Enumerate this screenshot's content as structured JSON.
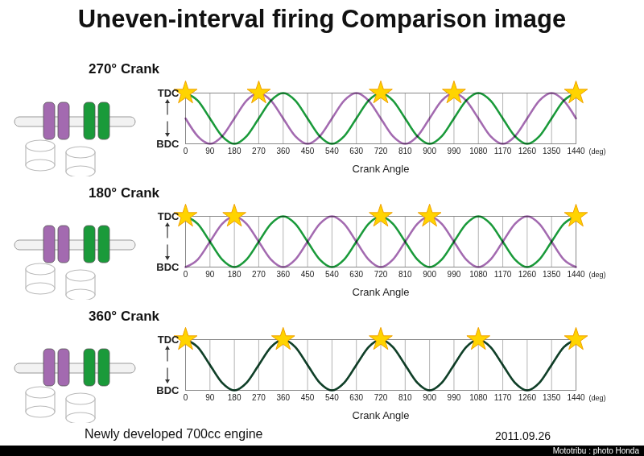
{
  "title": "Uneven-interval firing Comparison image",
  "caption": "Newly developed 700cc engine",
  "date": "2011.09.26",
  "credit": "Mototribu : photo Honda",
  "chart_data": [
    {
      "type": "line",
      "title": "270° Crank",
      "xlabel": "Crank Angle",
      "x_unit": "(deg)",
      "x": [
        0,
        45,
        90,
        135,
        180,
        225,
        270,
        315,
        360,
        405,
        450,
        495,
        540,
        585,
        630,
        675,
        720,
        765,
        810,
        855,
        900,
        945,
        990,
        1035,
        1080,
        1125,
        1170,
        1215,
        1260,
        1305,
        1350,
        1395,
        1440
      ],
      "series": [
        {
          "color": "#1a9a3a",
          "values": [
            1,
            0.85,
            0.5,
            0.15,
            0,
            0.15,
            0.5,
            0.85,
            1,
            0.85,
            0.5,
            0.15,
            0,
            0.15,
            0.5,
            0.85,
            1,
            0.85,
            0.5,
            0.15,
            0,
            0.15,
            0.5,
            0.85,
            1,
            0.85,
            0.5,
            0.15,
            0,
            0.15,
            0.5,
            0.85,
            1
          ]
        },
        {
          "color": "#a36ab0",
          "values": [
            0.5,
            0.15,
            0,
            0.15,
            0.5,
            0.85,
            1,
            0.85,
            0.5,
            0.15,
            0,
            0.15,
            0.5,
            0.85,
            1,
            0.85,
            0.5,
            0.15,
            0,
            0.15,
            0.5,
            0.85,
            1,
            0.85,
            0.5,
            0.15,
            0,
            0.15,
            0.5,
            0.85,
            1,
            0.85,
            0.5
          ]
        }
      ],
      "firing": {
        "x": [
          0,
          270,
          720,
          990,
          1440
        ],
        "y": [
          1,
          1,
          1,
          1,
          1
        ]
      },
      "xlim": [
        0,
        1440
      ],
      "xticks": [
        0,
        90,
        180,
        270,
        360,
        450,
        540,
        630,
        720,
        810,
        900,
        990,
        1080,
        1170,
        1260,
        1350,
        1440
      ],
      "ylim": [
        0,
        1
      ],
      "yticks": [
        {
          "value": 0,
          "label": "BDC"
        },
        {
          "value": 1,
          "label": "TDC"
        }
      ],
      "grid": true
    },
    {
      "type": "line",
      "title": "180° Crank",
      "xlabel": "Crank Angle",
      "x_unit": "(deg)",
      "x": [
        0,
        45,
        90,
        135,
        180,
        225,
        270,
        315,
        360,
        405,
        450,
        495,
        540,
        585,
        630,
        675,
        720,
        765,
        810,
        855,
        900,
        945,
        990,
        1035,
        1080,
        1125,
        1170,
        1215,
        1260,
        1305,
        1350,
        1395,
        1440
      ],
      "series": [
        {
          "color": "#1a9a3a",
          "values": [
            1,
            0.85,
            0.5,
            0.15,
            0,
            0.15,
            0.5,
            0.85,
            1,
            0.85,
            0.5,
            0.15,
            0,
            0.15,
            0.5,
            0.85,
            1,
            0.85,
            0.5,
            0.15,
            0,
            0.15,
            0.5,
            0.85,
            1,
            0.85,
            0.5,
            0.15,
            0,
            0.15,
            0.5,
            0.85,
            1
          ]
        },
        {
          "color": "#a36ab0",
          "values": [
            0,
            0.15,
            0.5,
            0.85,
            1,
            0.85,
            0.5,
            0.15,
            0,
            0.15,
            0.5,
            0.85,
            1,
            0.85,
            0.5,
            0.15,
            0,
            0.15,
            0.5,
            0.85,
            1,
            0.85,
            0.5,
            0.15,
            0,
            0.15,
            0.5,
            0.85,
            1,
            0.85,
            0.5,
            0.15,
            0
          ]
        }
      ],
      "firing": {
        "x": [
          0,
          180,
          720,
          900,
          1440
        ],
        "y": [
          1,
          1,
          1,
          1,
          1
        ]
      },
      "xlim": [
        0,
        1440
      ],
      "xticks": [
        0,
        90,
        180,
        270,
        360,
        450,
        540,
        630,
        720,
        810,
        900,
        990,
        1080,
        1170,
        1260,
        1350,
        1440
      ],
      "ylim": [
        0,
        1
      ],
      "yticks": [
        {
          "value": 0,
          "label": "BDC"
        },
        {
          "value": 1,
          "label": "TDC"
        }
      ],
      "grid": true
    },
    {
      "type": "line",
      "title": "360° Crank",
      "xlabel": "Crank Angle",
      "x_unit": "(deg)",
      "x": [
        0,
        45,
        90,
        135,
        180,
        225,
        270,
        315,
        360,
        405,
        450,
        495,
        540,
        585,
        630,
        675,
        720,
        765,
        810,
        855,
        900,
        945,
        990,
        1035,
        1080,
        1125,
        1170,
        1215,
        1260,
        1305,
        1350,
        1395,
        1440
      ],
      "series": [
        {
          "color": "#1a9a3a",
          "values": [
            1,
            0.85,
            0.5,
            0.15,
            0,
            0.15,
            0.5,
            0.85,
            1,
            0.85,
            0.5,
            0.15,
            0,
            0.15,
            0.5,
            0.85,
            1,
            0.85,
            0.5,
            0.15,
            0,
            0.15,
            0.5,
            0.85,
            1,
            0.85,
            0.5,
            0.15,
            0,
            0.15,
            0.5,
            0.85,
            1
          ]
        },
        {
          "color": "#a36ab0",
          "values": [
            1,
            0.85,
            0.5,
            0.15,
            0,
            0.15,
            0.5,
            0.85,
            1,
            0.85,
            0.5,
            0.15,
            0,
            0.15,
            0.5,
            0.85,
            1,
            0.85,
            0.5,
            0.15,
            0,
            0.15,
            0.5,
            0.85,
            1,
            0.85,
            0.5,
            0.15,
            0,
            0.15,
            0.5,
            0.85,
            1
          ]
        }
      ],
      "firing": {
        "x": [
          0,
          360,
          720,
          1080,
          1440
        ],
        "y": [
          1,
          1,
          1,
          1,
          1
        ]
      },
      "xlim": [
        0,
        1440
      ],
      "xticks": [
        0,
        90,
        180,
        270,
        360,
        450,
        540,
        630,
        720,
        810,
        900,
        990,
        1080,
        1170,
        1260,
        1350,
        1440
      ],
      "ylim": [
        0,
        1
      ],
      "yticks": [
        {
          "value": 0,
          "label": "BDC"
        },
        {
          "value": 1,
          "label": "TDC"
        }
      ],
      "grid": true
    }
  ]
}
